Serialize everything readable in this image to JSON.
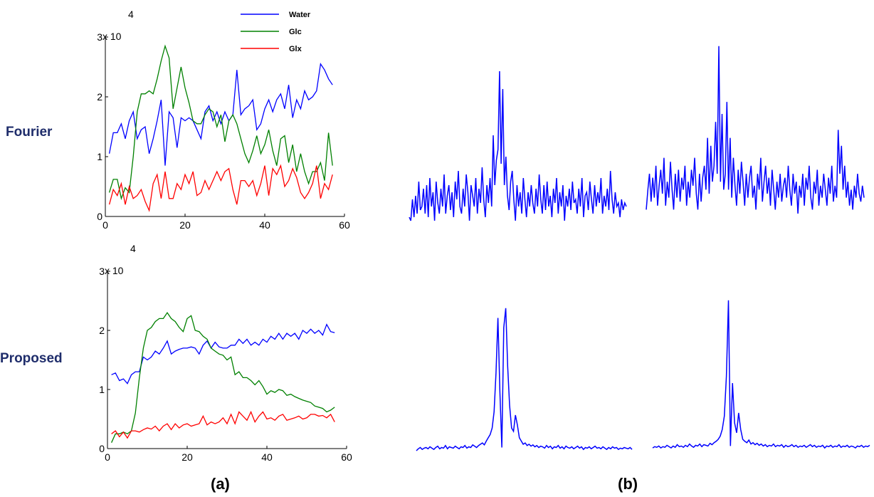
{
  "row_labels": [
    "Fourier",
    "Proposed"
  ],
  "panel_labels": [
    "(a)",
    "(b)"
  ],
  "legend": [
    {
      "name": "Water",
      "color": "#0000ff"
    },
    {
      "name": "Glc",
      "color": "#008000"
    },
    {
      "name": "Glx",
      "color": "#ff0000"
    }
  ],
  "chart_data": [
    {
      "type": "line",
      "id": "fourier-timecourse",
      "title": "",
      "xlabel": "",
      "ylabel": "",
      "xlim": [
        0,
        60
      ],
      "ylim": [
        0,
        3
      ],
      "y_exponent_label": "x 10",
      "y_exponent": "4",
      "xticks": [
        "0",
        "20",
        "40",
        "60"
      ],
      "yticks": [
        "0",
        "1",
        "2",
        "3"
      ],
      "x": [
        1,
        2,
        3,
        4,
        5,
        6,
        7,
        8,
        9,
        10,
        11,
        12,
        13,
        14,
        15,
        16,
        17,
        18,
        19,
        20,
        21,
        22,
        23,
        24,
        25,
        26,
        27,
        28,
        29,
        30,
        31,
        32,
        33,
        34,
        35,
        36,
        37,
        38,
        39,
        40,
        41,
        42,
        43,
        44,
        45,
        46,
        47,
        48,
        49,
        50,
        51,
        52,
        53,
        54,
        55,
        56,
        57
      ],
      "series": [
        {
          "name": "Water",
          "color": "#0000ff",
          "values": [
            1.05,
            1.4,
            1.4,
            1.55,
            1.3,
            1.6,
            1.75,
            1.3,
            1.45,
            1.5,
            1.05,
            1.3,
            1.6,
            1.95,
            0.85,
            1.75,
            1.65,
            1.15,
            1.65,
            1.6,
            1.65,
            1.6,
            1.45,
            1.3,
            1.75,
            1.85,
            1.6,
            1.75,
            1.55,
            1.75,
            1.6,
            1.7,
            2.45,
            1.7,
            1.8,
            1.85,
            1.95,
            1.45,
            1.55,
            1.8,
            1.95,
            1.75,
            1.95,
            2.05,
            1.8,
            2.2,
            1.65,
            1.95,
            1.8,
            2.1,
            1.95,
            2.0,
            2.1,
            2.55,
            2.45,
            2.3,
            2.2
          ]
        },
        {
          "name": "Glc",
          "color": "#008000",
          "values": [
            0.4,
            0.62,
            0.62,
            0.3,
            0.48,
            0.4,
            1.0,
            1.75,
            2.05,
            2.05,
            2.1,
            2.05,
            2.3,
            2.6,
            2.85,
            2.65,
            1.8,
            2.15,
            2.5,
            2.15,
            1.9,
            1.6,
            1.55,
            1.55,
            1.7,
            1.8,
            1.75,
            1.5,
            1.7,
            1.25,
            1.6,
            1.7,
            1.55,
            1.3,
            1.05,
            0.9,
            1.1,
            1.35,
            1.05,
            1.2,
            1.45,
            1.1,
            0.85,
            1.3,
            1.35,
            0.9,
            1.2,
            0.75,
            1.05,
            0.75,
            0.55,
            0.75,
            0.75,
            0.9,
            0.6,
            1.4,
            0.85
          ]
        },
        {
          "name": "Glx",
          "color": "#ff0000",
          "values": [
            0.2,
            0.45,
            0.35,
            0.55,
            0.2,
            0.5,
            0.3,
            0.35,
            0.45,
            0.25,
            0.1,
            0.55,
            0.7,
            0.3,
            0.75,
            0.3,
            0.3,
            0.55,
            0.45,
            0.7,
            0.55,
            0.75,
            0.35,
            0.4,
            0.6,
            0.45,
            0.6,
            0.75,
            0.6,
            0.75,
            0.8,
            0.45,
            0.2,
            0.6,
            0.6,
            0.5,
            0.6,
            0.35,
            0.55,
            0.85,
            0.35,
            0.8,
            0.7,
            0.85,
            0.5,
            0.6,
            0.8,
            0.65,
            0.4,
            0.3,
            0.4,
            0.55,
            0.85,
            0.3,
            0.55,
            0.45,
            0.7
          ]
        }
      ]
    },
    {
      "type": "line",
      "id": "proposed-timecourse",
      "title": "",
      "xlabel": "",
      "ylabel": "",
      "xlim": [
        0,
        60
      ],
      "ylim": [
        0,
        3
      ],
      "y_exponent_label": "x 10",
      "y_exponent": "4",
      "xticks": [
        "0",
        "20",
        "40",
        "60"
      ],
      "yticks": [
        "0",
        "1",
        "2",
        "3"
      ],
      "x": [
        1,
        2,
        3,
        4,
        5,
        6,
        7,
        8,
        9,
        10,
        11,
        12,
        13,
        14,
        15,
        16,
        17,
        18,
        19,
        20,
        21,
        22,
        23,
        24,
        25,
        26,
        27,
        28,
        29,
        30,
        31,
        32,
        33,
        34,
        35,
        36,
        37,
        38,
        39,
        40,
        41,
        42,
        43,
        44,
        45,
        46,
        47,
        48,
        49,
        50,
        51,
        52,
        53,
        54,
        55,
        56,
        57
      ],
      "series": [
        {
          "name": "Water",
          "color": "#0000ff",
          "values": [
            1.25,
            1.28,
            1.15,
            1.18,
            1.1,
            1.25,
            1.3,
            1.3,
            1.55,
            1.5,
            1.55,
            1.65,
            1.6,
            1.7,
            1.82,
            1.6,
            1.65,
            1.68,
            1.7,
            1.7,
            1.72,
            1.7,
            1.6,
            1.75,
            1.82,
            1.7,
            1.8,
            1.72,
            1.7,
            1.7,
            1.75,
            1.75,
            1.85,
            1.78,
            1.85,
            1.75,
            1.8,
            1.75,
            1.85,
            1.8,
            1.9,
            1.85,
            1.95,
            1.85,
            1.95,
            1.9,
            1.95,
            1.85,
            2.0,
            1.95,
            2.02,
            1.95,
            2.0,
            1.92,
            2.1,
            1.98,
            1.96
          ]
        },
        {
          "name": "Glc",
          "color": "#008000",
          "values": [
            0.1,
            0.25,
            0.25,
            0.28,
            0.25,
            0.3,
            0.6,
            1.2,
            1.7,
            2.0,
            2.05,
            2.15,
            2.2,
            2.2,
            2.3,
            2.2,
            2.15,
            2.05,
            1.98,
            2.2,
            2.25,
            2.0,
            1.98,
            1.9,
            1.85,
            1.7,
            1.65,
            1.6,
            1.58,
            1.5,
            1.55,
            1.25,
            1.3,
            1.2,
            1.2,
            1.15,
            1.08,
            1.15,
            1.05,
            0.92,
            0.98,
            0.95,
            1.0,
            0.98,
            0.9,
            0.92,
            0.88,
            0.85,
            0.82,
            0.8,
            0.78,
            0.72,
            0.7,
            0.68,
            0.62,
            0.65,
            0.7
          ]
        },
        {
          "name": "Glx",
          "color": "#ff0000",
          "values": [
            0.25,
            0.3,
            0.2,
            0.28,
            0.18,
            0.3,
            0.3,
            0.28,
            0.32,
            0.35,
            0.33,
            0.38,
            0.3,
            0.38,
            0.42,
            0.32,
            0.42,
            0.35,
            0.4,
            0.42,
            0.38,
            0.4,
            0.42,
            0.55,
            0.4,
            0.45,
            0.42,
            0.45,
            0.52,
            0.42,
            0.58,
            0.42,
            0.62,
            0.55,
            0.48,
            0.62,
            0.45,
            0.55,
            0.62,
            0.5,
            0.52,
            0.48,
            0.55,
            0.58,
            0.48,
            0.5,
            0.52,
            0.55,
            0.5,
            0.52,
            0.58,
            0.58,
            0.55,
            0.56,
            0.52,
            0.58,
            0.45
          ]
        }
      ]
    },
    {
      "type": "line",
      "id": "fourier-spectrum-1",
      "color": "#0000ff",
      "values": [
        0.05,
        0.0,
        0.3,
        0.05,
        0.35,
        0.1,
        0.55,
        0.15,
        0.2,
        0.45,
        0.1,
        0.5,
        0.05,
        0.6,
        0.2,
        0.4,
        0.0,
        0.55,
        0.25,
        0.1,
        0.45,
        0.2,
        0.65,
        0.1,
        0.35,
        0.5,
        0.15,
        0.4,
        0.05,
        0.55,
        0.3,
        0.7,
        0.2,
        0.1,
        0.45,
        0.2,
        0.65,
        0.4,
        0.0,
        0.5,
        0.35,
        0.2,
        0.6,
        0.1,
        0.45,
        0.25,
        0.75,
        0.3,
        0.05,
        0.5,
        0.25,
        0.6,
        0.2,
        1.2,
        0.5,
        0.85,
        1.0,
        2.1,
        0.8,
        1.85,
        0.5,
        0.9,
        0.35,
        0.15,
        0.55,
        0.7,
        0.3,
        0.0,
        0.5,
        0.2,
        0.4,
        0.1,
        0.6,
        0.3,
        0.05,
        0.4,
        0.2,
        0.5,
        0.25,
        0.1,
        0.45,
        0.2,
        0.65,
        0.3,
        0.1,
        0.5,
        0.15,
        0.55,
        0.2,
        0.35,
        0.05,
        0.45,
        0.25,
        0.6,
        0.1,
        0.4,
        0.2,
        0.5,
        0.0,
        0.35,
        0.2,
        0.45,
        0.15,
        0.55,
        0.25,
        0.3,
        0.1,
        0.45,
        0.2,
        0.6,
        0.05,
        0.35,
        0.4,
        0.15,
        0.55,
        0.3,
        0.1,
        0.5,
        0.2,
        0.4,
        0.25,
        0.6,
        0.1,
        0.35,
        0.2,
        0.45,
        0.15,
        0.7,
        0.3,
        0.1,
        0.4,
        0.2,
        0.25,
        0.05,
        0.3,
        0.15,
        0.25,
        0.2
      ]
    },
    {
      "type": "line",
      "id": "fourier-spectrum-2",
      "color": "#0000ff",
      "values": [
        0.05,
        0.3,
        0.5,
        0.15,
        0.45,
        0.2,
        0.6,
        0.1,
        0.35,
        0.55,
        0.25,
        0.7,
        0.1,
        0.4,
        0.2,
        0.65,
        0.3,
        0.05,
        0.5,
        0.2,
        0.55,
        0.15,
        0.45,
        0.3,
        0.6,
        0.1,
        0.4,
        0.2,
        0.55,
        0.35,
        0.7,
        0.25,
        0.05,
        0.5,
        0.15,
        0.45,
        0.6,
        0.3,
        0.95,
        0.25,
        0.85,
        0.4,
        0.6,
        1.15,
        0.5,
        2.1,
        0.4,
        1.25,
        0.3,
        0.5,
        1.4,
        0.3,
        0.95,
        0.2,
        0.7,
        0.35,
        0.1,
        0.55,
        0.25,
        0.65,
        0.4,
        0.1,
        0.5,
        0.2,
        0.45,
        0.6,
        0.2,
        0.35,
        0.05,
        0.5,
        0.3,
        0.7,
        0.15,
        0.4,
        0.6,
        0.25,
        0.45,
        0.1,
        0.55,
        0.3,
        0.05,
        0.4,
        0.2,
        0.5,
        0.15,
        0.35,
        0.45,
        0.2,
        0.6,
        0.3,
        0.1,
        0.5,
        0.25,
        0.4,
        0.0,
        0.35,
        0.2,
        0.5,
        0.1,
        0.45,
        0.3,
        0.6,
        0.2,
        0.05,
        0.4,
        0.25,
        0.55,
        0.1,
        0.35,
        0.2,
        0.5,
        0.3,
        0.1,
        0.45,
        0.25,
        0.6,
        0.15,
        0.35,
        0.2,
        1.05,
        0.5,
        0.85,
        0.3,
        0.6,
        0.2,
        0.4,
        0.1,
        0.3,
        0.05,
        0.35,
        0.2,
        0.5,
        0.25,
        0.15,
        0.35,
        0.2
      ]
    },
    {
      "type": "line",
      "id": "proposed-spectrum-1",
      "color": "#0000ff",
      "values": [
        0.0,
        0.03,
        0.05,
        0.02,
        0.04,
        0.05,
        0.03,
        0.06,
        0.04,
        0.02,
        0.05,
        0.07,
        0.03,
        0.05,
        0.04,
        0.08,
        0.03,
        0.06,
        0.05,
        0.04,
        0.07,
        0.05,
        0.03,
        0.06,
        0.05,
        0.08,
        0.04,
        0.06,
        0.05,
        0.09,
        0.07,
        0.05,
        0.08,
        0.1,
        0.12,
        0.09,
        0.15,
        0.2,
        0.25,
        0.35,
        0.6,
        1.2,
        2.05,
        0.9,
        0.05,
        1.9,
        2.2,
        1.3,
        0.7,
        0.35,
        0.3,
        0.55,
        0.4,
        0.2,
        0.15,
        0.1,
        0.12,
        0.08,
        0.1,
        0.07,
        0.09,
        0.06,
        0.08,
        0.05,
        0.07,
        0.06,
        0.04,
        0.08,
        0.05,
        0.07,
        0.03,
        0.06,
        0.05,
        0.08,
        0.04,
        0.06,
        0.03,
        0.07,
        0.05,
        0.04,
        0.06,
        0.03,
        0.05,
        0.07,
        0.04,
        0.06,
        0.02,
        0.05,
        0.04,
        0.06,
        0.03,
        0.05,
        0.07,
        0.04,
        0.05,
        0.03,
        0.06,
        0.04,
        0.02,
        0.05,
        0.03,
        0.06,
        0.04,
        0.05,
        0.02,
        0.04,
        0.03,
        0.05,
        0.04,
        0.03,
        0.05,
        0.02
      ]
    },
    {
      "type": "line",
      "id": "proposed-spectrum-2",
      "color": "#0000ff",
      "values": [
        0.02,
        0.04,
        0.03,
        0.05,
        0.02,
        0.04,
        0.03,
        0.06,
        0.04,
        0.02,
        0.05,
        0.03,
        0.07,
        0.04,
        0.05,
        0.03,
        0.06,
        0.04,
        0.08,
        0.05,
        0.03,
        0.06,
        0.05,
        0.08,
        0.04,
        0.07,
        0.06,
        0.05,
        0.09,
        0.07,
        0.1,
        0.12,
        0.15,
        0.2,
        0.3,
        0.5,
        1.1,
        2.25,
        0.05,
        1.0,
        0.4,
        0.25,
        0.55,
        0.3,
        0.15,
        0.12,
        0.1,
        0.14,
        0.08,
        0.1,
        0.07,
        0.09,
        0.06,
        0.08,
        0.05,
        0.07,
        0.04,
        0.06,
        0.05,
        0.08,
        0.04,
        0.06,
        0.05,
        0.07,
        0.03,
        0.06,
        0.04,
        0.05,
        0.07,
        0.04,
        0.06,
        0.03,
        0.05,
        0.04,
        0.06,
        0.03,
        0.05,
        0.07,
        0.04,
        0.06,
        0.03,
        0.05,
        0.04,
        0.06,
        0.02,
        0.05,
        0.04,
        0.06,
        0.03,
        0.05,
        0.04,
        0.07,
        0.03,
        0.05,
        0.04,
        0.06,
        0.03,
        0.05,
        0.04,
        0.02,
        0.05,
        0.04,
        0.06,
        0.03,
        0.05,
        0.04,
        0.06
      ]
    }
  ]
}
